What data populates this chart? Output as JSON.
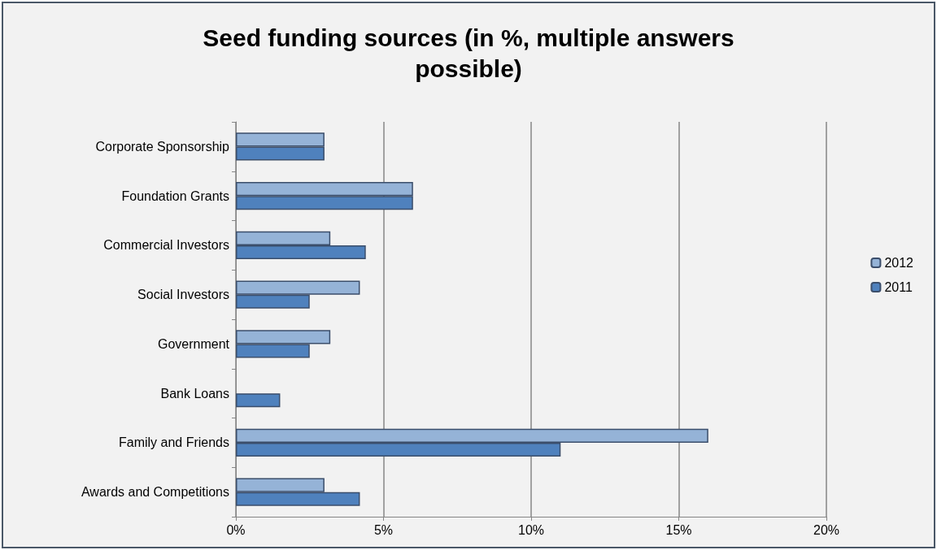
{
  "chart_data": {
    "type": "bar",
    "orientation": "horizontal",
    "title": "Seed funding sources (in %, multiple answers\npossible)",
    "categories": [
      "Corporate Sponsorship",
      "Foundation Grants",
      "Commercial Investors",
      "Social Investors",
      "Government",
      "Bank Loans",
      "Family and Friends",
      "Awards and Competitions"
    ],
    "series": [
      {
        "name": "2012",
        "color": "#95b3d7",
        "values": [
          3.0,
          6.0,
          3.2,
          4.2,
          3.2,
          null,
          16.0,
          3.0
        ]
      },
      {
        "name": "2011",
        "color": "#4f81bd",
        "values": [
          3.0,
          6.0,
          4.4,
          2.5,
          2.5,
          1.5,
          11.0,
          4.2
        ]
      }
    ],
    "xlim": [
      0,
      20
    ],
    "xticks": [
      {
        "value": 0,
        "label": "0%"
      },
      {
        "value": 5,
        "label": "5%"
      },
      {
        "value": 10,
        "label": "10%"
      },
      {
        "value": 15,
        "label": "15%"
      },
      {
        "value": 20,
        "label": "20%"
      }
    ],
    "grid": "x",
    "legend": "right"
  }
}
